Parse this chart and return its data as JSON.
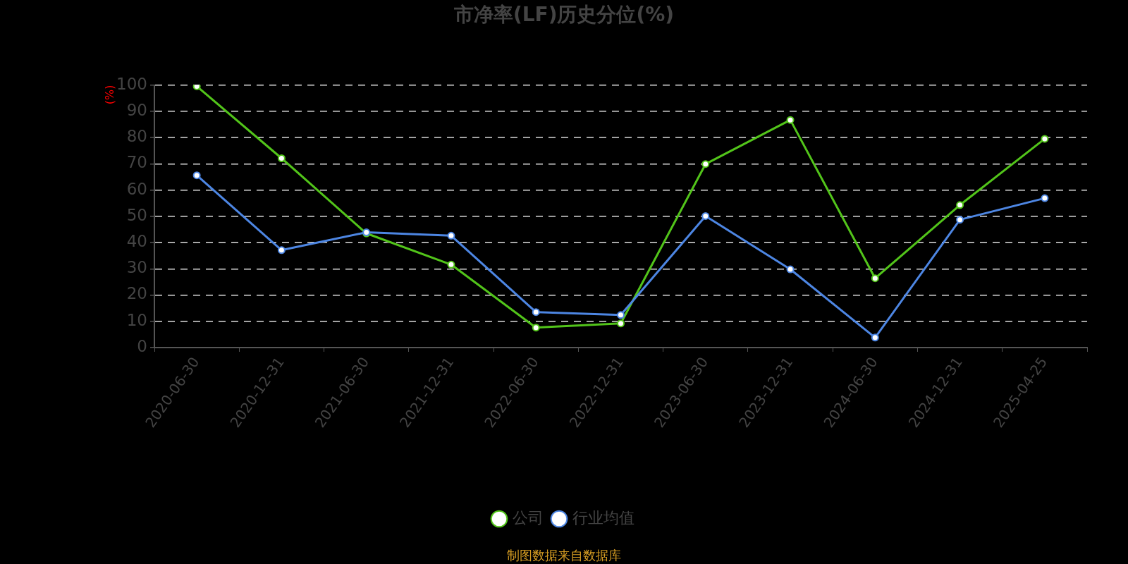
{
  "chart_data": {
    "type": "line",
    "title": "市净率(LF)历史分位(%)",
    "ylabel": "(%)",
    "categories": [
      "2020-06-30",
      "2020-12-31",
      "2021-06-30",
      "2021-12-31",
      "2022-06-30",
      "2022-12-31",
      "2023-06-30",
      "2023-12-31",
      "2024-06-30",
      "2024-12-31",
      "2025-04-25"
    ],
    "series": [
      {
        "name": "公司",
        "color": "#52c41a",
        "values": [
          99.5,
          72.1,
          43.5,
          31.6,
          7.6,
          9.2,
          69.9,
          86.7,
          26.4,
          54.3,
          79.5
        ]
      },
      {
        "name": "行业均值",
        "color": "#4d86e3",
        "values": [
          65.6,
          37.1,
          43.9,
          42.6,
          13.5,
          12.4,
          50.1,
          29.8,
          3.8,
          48.7,
          56.9
        ]
      }
    ],
    "ylim": [
      0,
      100
    ],
    "yticks": [
      0,
      10,
      20,
      30,
      40,
      50,
      60,
      70,
      80,
      90,
      100
    ],
    "grid": "y",
    "legend": "bottom",
    "marker": "circle",
    "line_style": "solid",
    "annotations": [
      "制图数据来自数据库"
    ]
  }
}
